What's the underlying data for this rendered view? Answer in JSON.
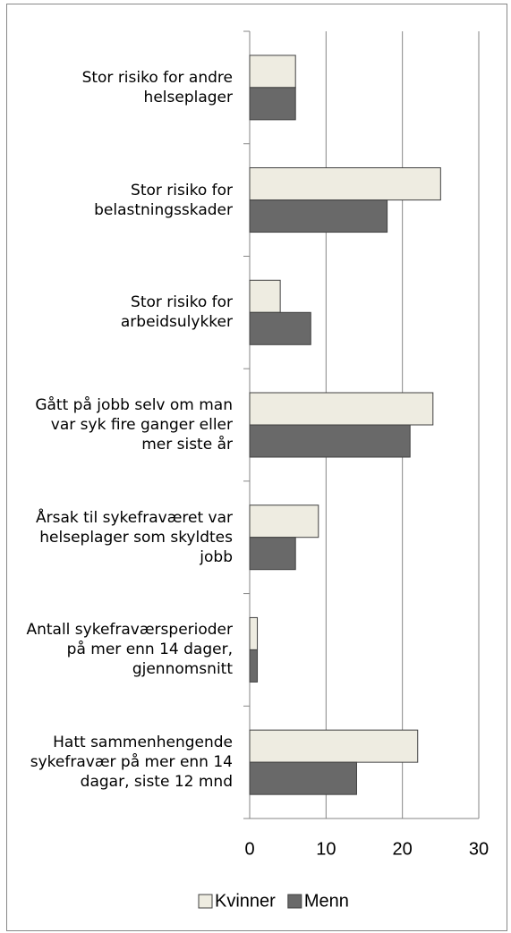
{
  "chart_data": {
    "type": "barh",
    "categories": [
      "Stor risiko for andre helseplager",
      "Stor risiko for belastningsskader",
      "Stor risiko for arbeidsulykker",
      "Gått på jobb selv om man var syk fire ganger eller mer siste år",
      "Årsak til sykefraværet var helseplager som skyldtes jobb",
      "Antall sykefraværsperioder på mer enn 14 dager, gjennomsnitt",
      "Hatt sammenhengende sykefravær på mer enn 14 dagar, siste 12 mnd"
    ],
    "series": [
      {
        "name": "Kvinner",
        "color": "#eeece1",
        "values": [
          6,
          25,
          4,
          24,
          9,
          1,
          22
        ]
      },
      {
        "name": "Menn",
        "color": "#696969",
        "values": [
          6,
          18,
          8,
          21,
          6,
          1,
          14
        ]
      }
    ],
    "xlim": [
      0,
      30
    ],
    "xticks": [
      0,
      10,
      20,
      30
    ],
    "grid": true,
    "legend": "bottom"
  }
}
